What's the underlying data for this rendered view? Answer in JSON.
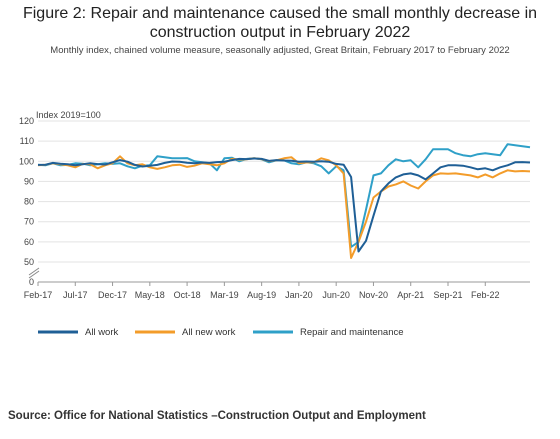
{
  "header": {
    "title_line1": "Figure 2: Repair and maintenance caused the small monthly decrease in",
    "title_line2": "construction output in February 2022",
    "subtitle": "Monthly index, chained volume measure, seasonally adjusted, Great Britain, February 2017 to February 2022"
  },
  "footer": {
    "source": "Source: Office for National Statistics –Construction Output and Employment"
  },
  "chart_data": {
    "type": "line",
    "title": "Figure 2: Repair and maintenance caused the small monthly decrease in construction output in February 2022",
    "subtitle": "Monthly index, chained volume measure, seasonally adjusted, Great Britain, February 2017 to February 2022",
    "ylabel": "Index 2019=100",
    "xlabel": "",
    "ylim": [
      0,
      120
    ],
    "y_axis_break": [
      0,
      50
    ],
    "yticks": [
      0,
      50,
      60,
      70,
      80,
      90,
      100,
      110,
      120
    ],
    "grid": true,
    "legend_position": "bottom",
    "x_tick_labels": [
      "Feb-17",
      "Jul-17",
      "Dec-17",
      "May-18",
      "Oct-18",
      "Mar-19",
      "Aug-19",
      "Jan-20",
      "Jun-20",
      "Nov-20",
      "Apr-21",
      "Sep-21",
      "Feb-22"
    ],
    "x_start": "2017-02",
    "x_end": "2022-02",
    "series": [
      {
        "name": "All work",
        "color": "#1f5f96",
        "values": [
          98.2,
          98.3,
          99.2,
          98.8,
          98.5,
          98.0,
          98.5,
          99.0,
          98.6,
          98.4,
          99.5,
          100.6,
          99.8,
          98.2,
          97.4,
          97.8,
          98.2,
          99.2,
          99.9,
          99.8,
          99.3,
          99.0,
          99.4,
          99.2,
          99.6,
          99.8,
          100.6,
          101.2,
          101.1,
          101.4,
          101.2,
          100.2,
          100.6,
          100.4,
          100.3,
          99.8,
          99.9,
          99.8,
          100.0,
          99.8,
          98.7,
          98.3,
          92.2,
          55.2,
          60.5,
          73.0,
          85.0,
          89.0,
          92.0,
          93.5,
          94.0,
          93.0,
          91.0,
          94.0,
          97.0,
          98.0,
          98.0,
          97.8,
          97.0,
          96.0,
          96.5,
          95.5,
          97.0,
          98.0,
          99.5,
          99.6,
          99.4
        ]
      },
      {
        "name": "All new work",
        "color": "#f39c2a",
        "values": [
          98.0,
          98.3,
          99.0,
          98.5,
          98.0,
          97.0,
          98.7,
          98.5,
          96.5,
          98.0,
          99.0,
          102.5,
          99.0,
          98.0,
          98.5,
          97.0,
          96.2,
          97.0,
          98.0,
          98.3,
          97.2,
          97.8,
          99.0,
          98.5,
          98.0,
          99.0,
          101.2,
          100.9,
          101.0,
          101.5,
          101.1,
          100.1,
          100.5,
          101.5,
          102.0,
          99.0,
          99.4,
          99.5,
          101.5,
          100.5,
          98.0,
          94.0,
          52.0,
          60.0,
          70.0,
          82.0,
          85.0,
          87.5,
          88.5,
          90.0,
          88.0,
          86.5,
          90.0,
          93.0,
          94.0,
          93.8,
          94.0,
          93.5,
          93.0,
          92.0,
          93.5,
          92.0,
          94.0,
          95.5,
          95.0,
          95.2,
          95.0
        ]
      },
      {
        "name": "Repair and maintenance",
        "color": "#2fa0c8",
        "values": [
          98.2,
          98.0,
          99.0,
          98.0,
          98.2,
          99.0,
          98.8,
          98.0,
          98.5,
          99.0,
          98.7,
          99.0,
          97.5,
          96.5,
          97.8,
          98.0,
          102.5,
          102.0,
          101.5,
          101.5,
          101.6,
          100.0,
          99.5,
          99.0,
          95.5,
          101.5,
          101.8,
          100.0,
          101.2,
          101.5,
          101.0,
          99.5,
          100.5,
          100.5,
          99.0,
          98.5,
          99.5,
          99.0,
          97.5,
          94.0,
          97.5,
          95.5,
          57.5,
          60.0,
          76.0,
          93.0,
          94.0,
          98.0,
          101.0,
          100.0,
          100.5,
          97.0,
          101.0,
          106.0,
          106.0,
          106.0,
          104.0,
          103.0,
          102.5,
          103.5,
          104.0,
          103.5,
          103.0,
          108.5,
          108.0,
          107.5,
          107.0
        ]
      }
    ]
  }
}
